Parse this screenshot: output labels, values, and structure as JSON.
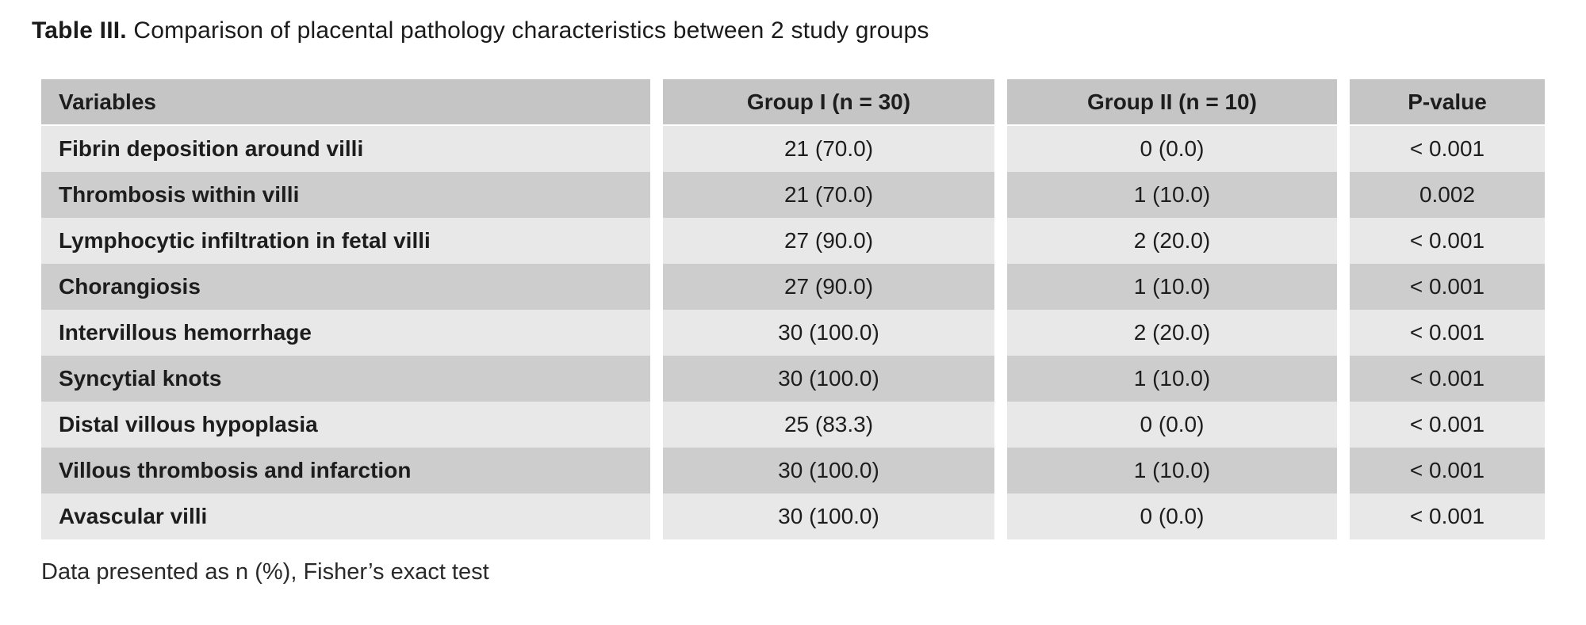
{
  "title": {
    "label_bold": "Table III.",
    "label_rest": " Comparison of placental pathology characteristics between 2 study groups"
  },
  "table": {
    "columns": [
      "Variables",
      "Group I (n = 30)",
      "Group II (n = 10)",
      "P-value"
    ],
    "rows": [
      {
        "variable": "Fibrin deposition around villi",
        "group1": "21 (70.0)",
        "group2": "0 (0.0)",
        "p": "< 0.001"
      },
      {
        "variable": "Thrombosis within villi",
        "group1": "21 (70.0)",
        "group2": "1 (10.0)",
        "p": "0.002"
      },
      {
        "variable": "Lymphocytic infiltration in fetal villi",
        "group1": "27 (90.0)",
        "group2": "2 (20.0)",
        "p": "< 0.001"
      },
      {
        "variable": "Chorangiosis",
        "group1": "27 (90.0)",
        "group2": "1 (10.0)",
        "p": "< 0.001"
      },
      {
        "variable": "Intervillous hemorrhage",
        "group1": "30 (100.0)",
        "group2": "2 (20.0)",
        "p": "< 0.001"
      },
      {
        "variable": "Syncytial knots",
        "group1": "30 (100.0)",
        "group2": "1 (10.0)",
        "p": "< 0.001"
      },
      {
        "variable": "Distal villous hypoplasia",
        "group1": "25 (83.3)",
        "group2": "0 (0.0)",
        "p": "< 0.001"
      },
      {
        "variable": "Villous thrombosis and infarction",
        "group1": "30 (100.0)",
        "group2": "1 (10.0)",
        "p": "< 0.001"
      },
      {
        "variable": "Avascular villi",
        "group1": "30 (100.0)",
        "group2": "0 (0.0)",
        "p": "< 0.001"
      }
    ]
  },
  "footnote": "Data presented as n (%), Fisher’s exact test",
  "colors": {
    "header_bg": "#c5c5c5",
    "row_light_bg": "#e8e8e8",
    "row_dark_bg": "#cdcdcd",
    "text": "#1d1d1d",
    "page_bg": "#ffffff"
  }
}
